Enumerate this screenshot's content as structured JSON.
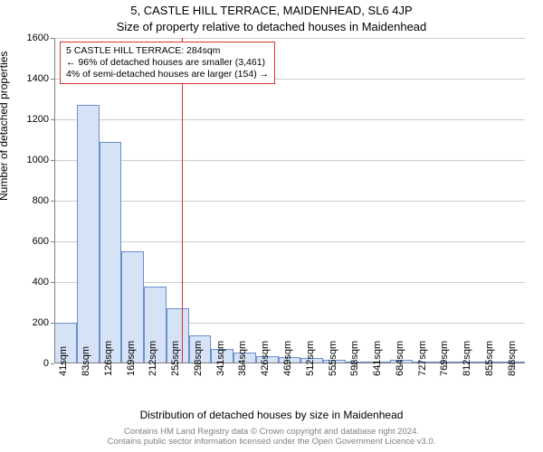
{
  "titles": {
    "main": "5, CASTLE HILL TERRACE, MAIDENHEAD, SL6 4JP",
    "sub": "Size of property relative to detached houses in Maidenhead",
    "y_axis": "Number of detached properties",
    "x_axis": "Distribution of detached houses by size in Maidenhead"
  },
  "chart": {
    "type": "histogram",
    "background_color": "#ffffff",
    "grid_color": "#cccccc",
    "axis_color": "#808080",
    "bar_fill": "#d6e2f5",
    "bar_border": "#6a8fd0",
    "marker_color": "#e03030",
    "ylim": [
      0,
      1600
    ],
    "ytick_step": 200,
    "x_categories": [
      "41sqm",
      "83sqm",
      "126sqm",
      "169sqm",
      "212sqm",
      "255sqm",
      "298sqm",
      "341sqm",
      "384sqm",
      "426sqm",
      "469sqm",
      "512sqm",
      "555sqm",
      "598sqm",
      "641sqm",
      "684sqm",
      "727sqm",
      "769sqm",
      "812sqm",
      "855sqm",
      "898sqm"
    ],
    "values": [
      200,
      1270,
      1090,
      550,
      380,
      270,
      140,
      70,
      55,
      35,
      30,
      25,
      20,
      10,
      10,
      20,
      5,
      5,
      5,
      5,
      5
    ],
    "marker_bin_index": 5,
    "marker_fraction_in_bin": 0.68,
    "label_fontsize": 11,
    "title_fontsize": 13,
    "axis_title_fontsize": 12
  },
  "annotation": {
    "line1": "5 CASTLE HILL TERRACE: 284sqm",
    "line2": "← 96% of detached houses are smaller (3,461)",
    "line3": "4% of semi-detached houses are larger (154) →"
  },
  "footer": {
    "line1": "Contains HM Land Registry data © Crown copyright and database right 2024.",
    "line2": "Contains public sector information licensed under the Open Government Licence v3.0."
  }
}
